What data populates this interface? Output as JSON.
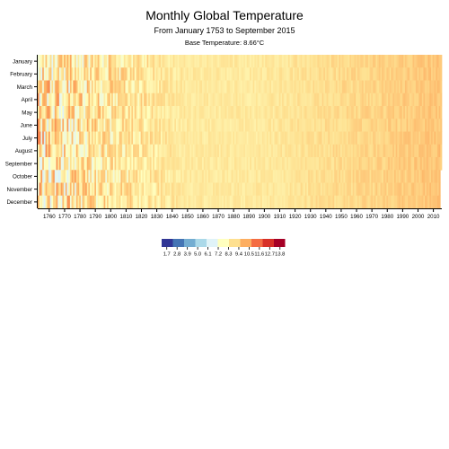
{
  "chart_data": {
    "type": "heatmap",
    "title": "Monthly Global Temperature",
    "subtitle": "From January 1753 to September 2015",
    "base_label": "Base Temperature: 8.66°C",
    "base_temperature": 8.66,
    "start_year": 1753,
    "end_year": 2015,
    "end_month_index": 8,
    "months": [
      "January",
      "February",
      "March",
      "April",
      "May",
      "June",
      "July",
      "August",
      "September",
      "October",
      "November",
      "December"
    ],
    "x_ticks": [
      1760,
      1770,
      1780,
      1790,
      1800,
      1810,
      1820,
      1830,
      1840,
      1850,
      1860,
      1870,
      1880,
      1890,
      1900,
      1910,
      1920,
      1930,
      1940,
      1950,
      1960,
      1970,
      1980,
      1990,
      2000,
      2010
    ],
    "legend": {
      "thresholds": [
        "1.7",
        "2.8",
        "3.9",
        "5.0",
        "6.1",
        "7.2",
        "8.3",
        "9.4",
        "10.5",
        "11.6",
        "12.7",
        "13.8"
      ],
      "colors": [
        "#313695",
        "#4575b4",
        "#74add1",
        "#abd9e9",
        "#e0f3f8",
        "#ffffbf",
        "#fee090",
        "#fdae61",
        "#f46d43",
        "#d73027",
        "#a50026"
      ]
    }
  }
}
